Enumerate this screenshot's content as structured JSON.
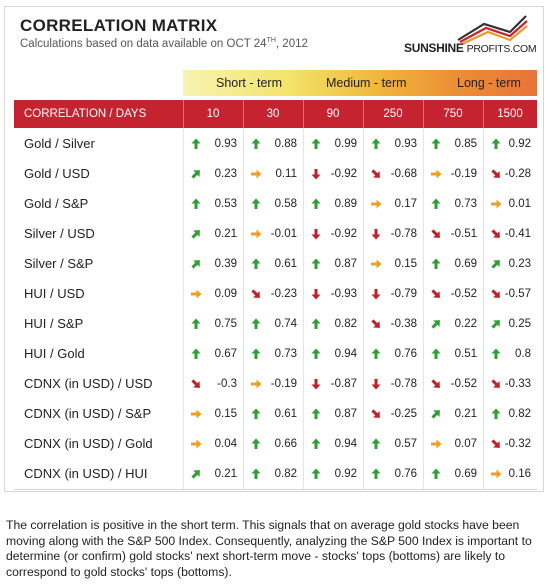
{
  "header": {
    "title": "CORRELATION MATRIX",
    "subtitle_prefix": "Calculations based on data available on  OCT 24",
    "subtitle_sup": "TH",
    "subtitle_suffix": ", 2012",
    "logo_main": "SUNSHINE",
    "logo_sub": "PROFITS.COM"
  },
  "terms": [
    "Short - term",
    "Medium - term",
    "Long - term"
  ],
  "columns": {
    "label": "CORRELATION / DAYS",
    "days": [
      "10",
      "30",
      "90",
      "250",
      "750",
      "1500"
    ]
  },
  "arrow_colors": {
    "up": "#2e9e35",
    "neutral": "#f0a020",
    "down": "#c0202a"
  },
  "rows": [
    {
      "pair": "Gold / Silver",
      "values": [
        "0.93",
        "0.88",
        "0.99",
        "0.93",
        "0.85",
        "0.92"
      ],
      "arrows": [
        "up",
        "up",
        "up",
        "up",
        "up",
        "up"
      ]
    },
    {
      "pair": "Gold / USD",
      "values": [
        "0.23",
        "0.11",
        "-0.92",
        "-0.68",
        "-0.19",
        "-0.28"
      ],
      "arrows": [
        "up-right",
        "right",
        "down",
        "down-right",
        "right",
        "down-right"
      ]
    },
    {
      "pair": "Gold / S&P",
      "values": [
        "0.53",
        "0.58",
        "0.89",
        "0.17",
        "0.73",
        "0.01"
      ],
      "arrows": [
        "up",
        "up",
        "up",
        "right",
        "up",
        "right"
      ]
    },
    {
      "pair": "Silver / USD",
      "values": [
        "0.21",
        "-0.01",
        "-0.92",
        "-0.78",
        "-0.51",
        "-0.41"
      ],
      "arrows": [
        "up-right",
        "right",
        "down",
        "down",
        "down-right",
        "down-right"
      ]
    },
    {
      "pair": "Silver / S&P",
      "values": [
        "0.39",
        "0.61",
        "0.87",
        "0.15",
        "0.69",
        "0.23"
      ],
      "arrows": [
        "up-right",
        "up",
        "up",
        "right",
        "up",
        "up-right"
      ]
    },
    {
      "pair": "HUI / USD",
      "values": [
        "0.09",
        "-0.23",
        "-0.93",
        "-0.79",
        "-0.52",
        "-0.57"
      ],
      "arrows": [
        "right",
        "down-right",
        "down",
        "down",
        "down-right",
        "down-right"
      ]
    },
    {
      "pair": "HUI / S&P",
      "values": [
        "0.75",
        "0.74",
        "0.82",
        "-0.38",
        "0.22",
        "0.25"
      ],
      "arrows": [
        "up",
        "up",
        "up",
        "down-right",
        "up-right",
        "up-right"
      ]
    },
    {
      "pair": "HUI / Gold",
      "values": [
        "0.67",
        "0.73",
        "0.94",
        "0.76",
        "0.51",
        "0.8"
      ],
      "arrows": [
        "up",
        "up",
        "up",
        "up",
        "up",
        "up"
      ]
    },
    {
      "pair": "CDNX (in USD) / USD",
      "values": [
        "-0.3",
        "-0.19",
        "-0.87",
        "-0.78",
        "-0.52",
        "-0.33"
      ],
      "arrows": [
        "down-right",
        "right",
        "down",
        "down",
        "down-right",
        "down-right"
      ]
    },
    {
      "pair": "CDNX (in USD) / S&P",
      "values": [
        "0.15",
        "0.61",
        "0.87",
        "-0.25",
        "0.21",
        "0.82"
      ],
      "arrows": [
        "right",
        "up",
        "up",
        "down-right",
        "up-right",
        "up"
      ]
    },
    {
      "pair": "CDNX (in USD) / Gold",
      "values": [
        "0.04",
        "0.66",
        "0.94",
        "0.57",
        "0.07",
        "-0.32"
      ],
      "arrows": [
        "right",
        "up",
        "up",
        "up",
        "right",
        "down-right"
      ]
    },
    {
      "pair": "CDNX (in USD) / HUI",
      "values": [
        "0.21",
        "0.82",
        "0.92",
        "0.76",
        "0.69",
        "0.16"
      ],
      "arrows": [
        "up-right",
        "up",
        "up",
        "up",
        "up",
        "right"
      ]
    }
  ],
  "note": "The correlation is positive in the short term. This signals that on average gold stocks have been moving along with the S&P 500 Index. Consequently, analyzing the S&P 500 Index is important to determine (or confirm) gold stocks' next short-term move - stocks' tops (bottoms) are likely to correspond to gold stocks' tops (bottoms)."
}
